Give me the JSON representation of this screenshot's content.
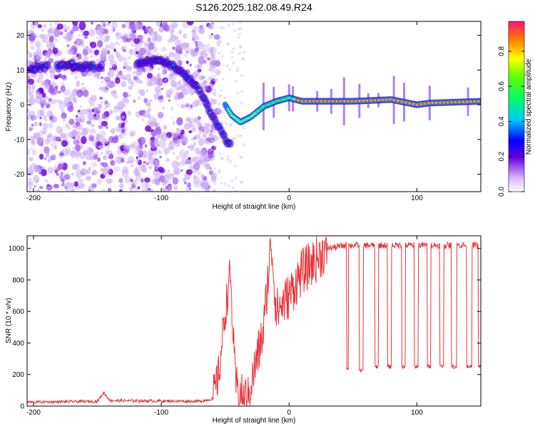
{
  "title": "S126.2025.182.08.49.R24",
  "chart_data": [
    {
      "type": "heatmap",
      "xlabel": "Height of straight line (km)",
      "ylabel": "Frequency (Hz)",
      "xlim": [
        -205,
        150
      ],
      "ylim": [
        -25,
        24
      ],
      "xticks": [
        -200,
        -100,
        0,
        100
      ],
      "yticks": [
        -20,
        -10,
        0,
        10,
        20
      ],
      "grid": false,
      "colorbar": {
        "label": "Normalized spectral amplitude",
        "range": [
          0,
          0.97
        ],
        "ticks": [
          0.0,
          0.2,
          0.4,
          0.6,
          0.8
        ]
      },
      "ridge": [
        {
          "x": -200,
          "y": 10.5
        },
        {
          "x": -190,
          "y": 11
        },
        {
          "x": -180,
          "y": 11
        },
        {
          "x": -170,
          "y": 11.5
        },
        {
          "x": -160,
          "y": 11
        },
        {
          "x": -150,
          "y": 11
        },
        {
          "x": -140,
          "y": 12
        },
        {
          "x": -120,
          "y": 12
        },
        {
          "x": -110,
          "y": 12.5
        },
        {
          "x": -100,
          "y": 12.5
        },
        {
          "x": -90,
          "y": 11
        },
        {
          "x": -80,
          "y": 8
        },
        {
          "x": -70,
          "y": 4
        },
        {
          "x": -60,
          "y": -3
        },
        {
          "x": -50,
          "y": -10
        },
        {
          "x": -45,
          "y": -12
        }
      ],
      "trace": [
        {
          "x": -50,
          "y": 0
        },
        {
          "x": -45,
          "y": -3
        },
        {
          "x": -38,
          "y": -5
        },
        {
          "x": -30,
          "y": -3.5
        },
        {
          "x": -20,
          "y": -0.5
        },
        {
          "x": -10,
          "y": 1
        },
        {
          "x": 0,
          "y": 2
        },
        {
          "x": 10,
          "y": 1
        },
        {
          "x": 50,
          "y": 1
        },
        {
          "x": 80,
          "y": 1.5
        },
        {
          "x": 100,
          "y": 0
        },
        {
          "x": 110,
          "y": 0.5
        },
        {
          "x": 150,
          "y": 1
        }
      ]
    },
    {
      "type": "line",
      "xlabel": "Height of straight line (km)",
      "ylabel": "SNR (10 * v/v)",
      "xlim": [
        -205,
        150
      ],
      "ylim": [
        0,
        1080
      ],
      "xticks": [
        -200,
        -100,
        0,
        100
      ],
      "yticks": [
        0,
        200,
        400,
        600,
        800,
        1000
      ],
      "grid": false,
      "color": "#e8343a",
      "keypoints": [
        {
          "x": -205,
          "y": 25
        },
        {
          "x": -150,
          "y": 30
        },
        {
          "x": -145,
          "y": 85
        },
        {
          "x": -140,
          "y": 35
        },
        {
          "x": -70,
          "y": 30
        },
        {
          "x": -60,
          "y": 45
        },
        {
          "x": -55,
          "y": 200
        },
        {
          "x": -50,
          "y": 600
        },
        {
          "x": -46,
          "y": 830
        },
        {
          "x": -42,
          "y": 150
        },
        {
          "x": -38,
          "y": 80
        },
        {
          "x": -32,
          "y": 60
        },
        {
          "x": -28,
          "y": 200
        },
        {
          "x": -20,
          "y": 480
        },
        {
          "x": -14,
          "y": 1050
        },
        {
          "x": -10,
          "y": 600
        },
        {
          "x": 0,
          "y": 700
        },
        {
          "x": 10,
          "y": 850
        },
        {
          "x": 20,
          "y": 920
        },
        {
          "x": 30,
          "y": 1000
        },
        {
          "x": 45,
          "y": 1020
        },
        {
          "x": 100,
          "y": 1020
        },
        {
          "x": 150,
          "y": 1020
        }
      ],
      "dropouts": [
        {
          "start": 45,
          "end": 46.5,
          "level": 240
        },
        {
          "start": 55,
          "end": 58,
          "level": 220
        },
        {
          "start": 67,
          "end": 70,
          "level": 250
        },
        {
          "start": 77,
          "end": 80,
          "level": 250
        },
        {
          "start": 88,
          "end": 91,
          "level": 250
        },
        {
          "start": 98,
          "end": 101,
          "level": 250
        },
        {
          "start": 108,
          "end": 111,
          "level": 250
        },
        {
          "start": 118,
          "end": 121,
          "level": 250
        },
        {
          "start": 127,
          "end": 131,
          "level": 250
        },
        {
          "start": 139,
          "end": 143,
          "level": 250
        },
        {
          "start": 148,
          "end": 150,
          "level": 250
        }
      ]
    }
  ]
}
